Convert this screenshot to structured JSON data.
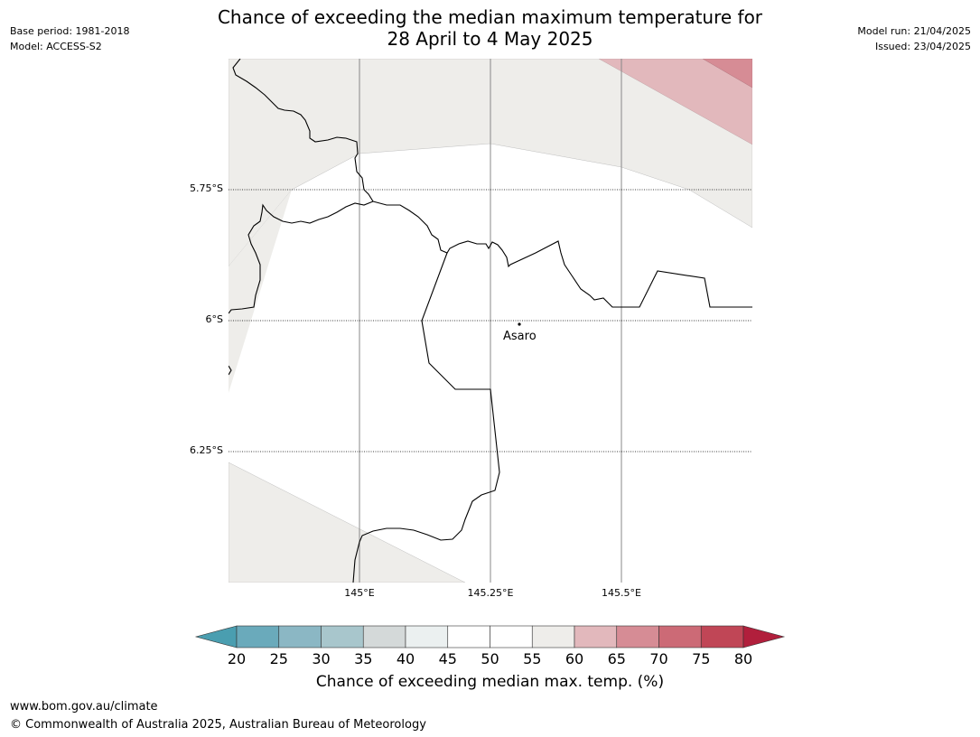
{
  "header": {
    "base_period": "Base period: 1981-2018",
    "model": "Model: ACCESS-S2",
    "model_run": "Model run: 21/04/2025",
    "issued": "Issued: 23/04/2025",
    "title_line1": "Chance of exceeding the median maximum temperature for",
    "title_line2": "28 April to 4 May 2025"
  },
  "map": {
    "lat_labels": [
      "5.75°S",
      "6°S",
      "6.25°S"
    ],
    "lon_labels": [
      "145°E",
      "145.25°E",
      "145.5°E"
    ],
    "place": {
      "name": "Asaro"
    }
  },
  "legend": {
    "ticks": [
      "20",
      "25",
      "30",
      "35",
      "40",
      "45",
      "50",
      "55",
      "60",
      "65",
      "70",
      "75",
      "80"
    ],
    "colors": [
      "#4a9eb0",
      "#6aaabb",
      "#8bb7c4",
      "#a8c6cc",
      "#d4d9d9",
      "#ebf0f0",
      "#ffffff",
      "#ffffff",
      "#eeedea",
      "#e2b8bc",
      "#d68c95",
      "#cc6a76",
      "#c04656",
      "#b11f3c"
    ],
    "title": "Chance of exceeding median max. temp. (%)"
  },
  "footer": {
    "url": "www.bom.gov.au/climate",
    "copyright": "© Commonwealth of Australia 2025, Australian Bureau of Meteorology"
  }
}
